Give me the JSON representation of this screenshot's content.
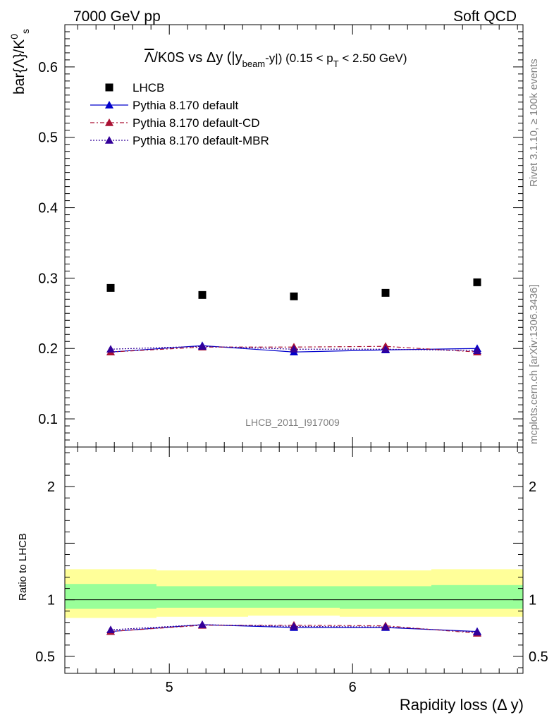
{
  "header": {
    "left": "7000 GeV pp",
    "right": "Soft QCD"
  },
  "side": {
    "rivet": "Rivet 3.1.10, ≥ 100k events",
    "mcplots": "mcplots.cern.ch [arXiv:1306.3436]"
  },
  "watermark": "LHCB_2011_I917009",
  "title": {
    "lambda": "Λ",
    "rest": "/K0S vs Δy (|y",
    "beam": "beam",
    "mid": "-y|) (0.15 < p",
    "T": "T",
    "end": " < 2.50 GeV)"
  },
  "ylabel": {
    "main": "bar{Λ}/K",
    "sup": "0",
    "sub": "s"
  },
  "ratio_ylabel": "Ratio to LHCB",
  "xlabel": "Rapidity loss (Δ y)",
  "colors": {
    "data": "#000000",
    "default": "#0000cc",
    "cd": "#aa1133",
    "mbr": "#330099",
    "band_inner": "#99ff99",
    "band_outer": "#ffff99"
  },
  "chart_data": {
    "type": "scatter",
    "x": [
      4.68,
      5.18,
      5.68,
      6.18,
      6.68
    ],
    "xlim": [
      4.43,
      6.93
    ],
    "xticks": [
      5,
      6
    ],
    "main": {
      "ylim": [
        0.06,
        0.66
      ],
      "yticks": [
        0.1,
        0.2,
        0.3,
        0.4,
        0.5,
        0.6
      ],
      "yticklabels": [
        "0.1",
        "0.2",
        "0.3",
        "0.4",
        "0.5",
        "0.6"
      ]
    },
    "ratio": {
      "ylim": [
        0.35,
        2.35
      ],
      "yticks": [
        0.5,
        1,
        2
      ],
      "yticklabels": [
        "0.5",
        "1",
        "2"
      ],
      "xticklabels": [
        "5",
        "6"
      ]
    },
    "band": [
      {
        "x0": 4.43,
        "x1": 4.93,
        "inner": [
          0.92,
          1.14
        ],
        "outer": [
          0.84,
          1.27
        ]
      },
      {
        "x0": 4.93,
        "x1": 5.43,
        "inner": [
          0.93,
          1.12
        ],
        "outer": [
          0.85,
          1.26
        ]
      },
      {
        "x0": 5.43,
        "x1": 5.93,
        "inner": [
          0.93,
          1.12
        ],
        "outer": [
          0.86,
          1.26
        ]
      },
      {
        "x0": 5.93,
        "x1": 6.43,
        "inner": [
          0.92,
          1.12
        ],
        "outer": [
          0.85,
          1.26
        ]
      },
      {
        "x0": 6.43,
        "x1": 6.93,
        "inner": [
          0.92,
          1.13
        ],
        "outer": [
          0.85,
          1.27
        ]
      }
    ],
    "series": [
      {
        "name": "LHCB",
        "key": "data",
        "marker": "square",
        "values": [
          0.286,
          0.276,
          0.274,
          0.279,
          0.294
        ],
        "ratio": [
          1,
          1,
          1,
          1,
          1
        ]
      },
      {
        "name": "Pythia 8.170 default",
        "key": "default",
        "marker": "triangle",
        "dash": "",
        "values": [
          0.195,
          0.204,
          0.195,
          0.198,
          0.2
        ],
        "ratio": [
          0.72,
          0.78,
          0.755,
          0.755,
          0.72
        ]
      },
      {
        "name": "Pythia 8.170 default-CD",
        "key": "cd",
        "marker": "triangle",
        "dash": "6,3,2,3",
        "values": [
          0.195,
          0.202,
          0.202,
          0.203,
          0.195
        ],
        "ratio": [
          0.72,
          0.775,
          0.775,
          0.77,
          0.705
        ]
      },
      {
        "name": "Pythia 8.170 default-MBR",
        "key": "mbr",
        "marker": "triangle",
        "dash": "2,2",
        "values": [
          0.199,
          0.203,
          0.199,
          0.199,
          0.197
        ],
        "ratio": [
          0.735,
          0.78,
          0.765,
          0.76,
          0.715
        ]
      }
    ]
  }
}
